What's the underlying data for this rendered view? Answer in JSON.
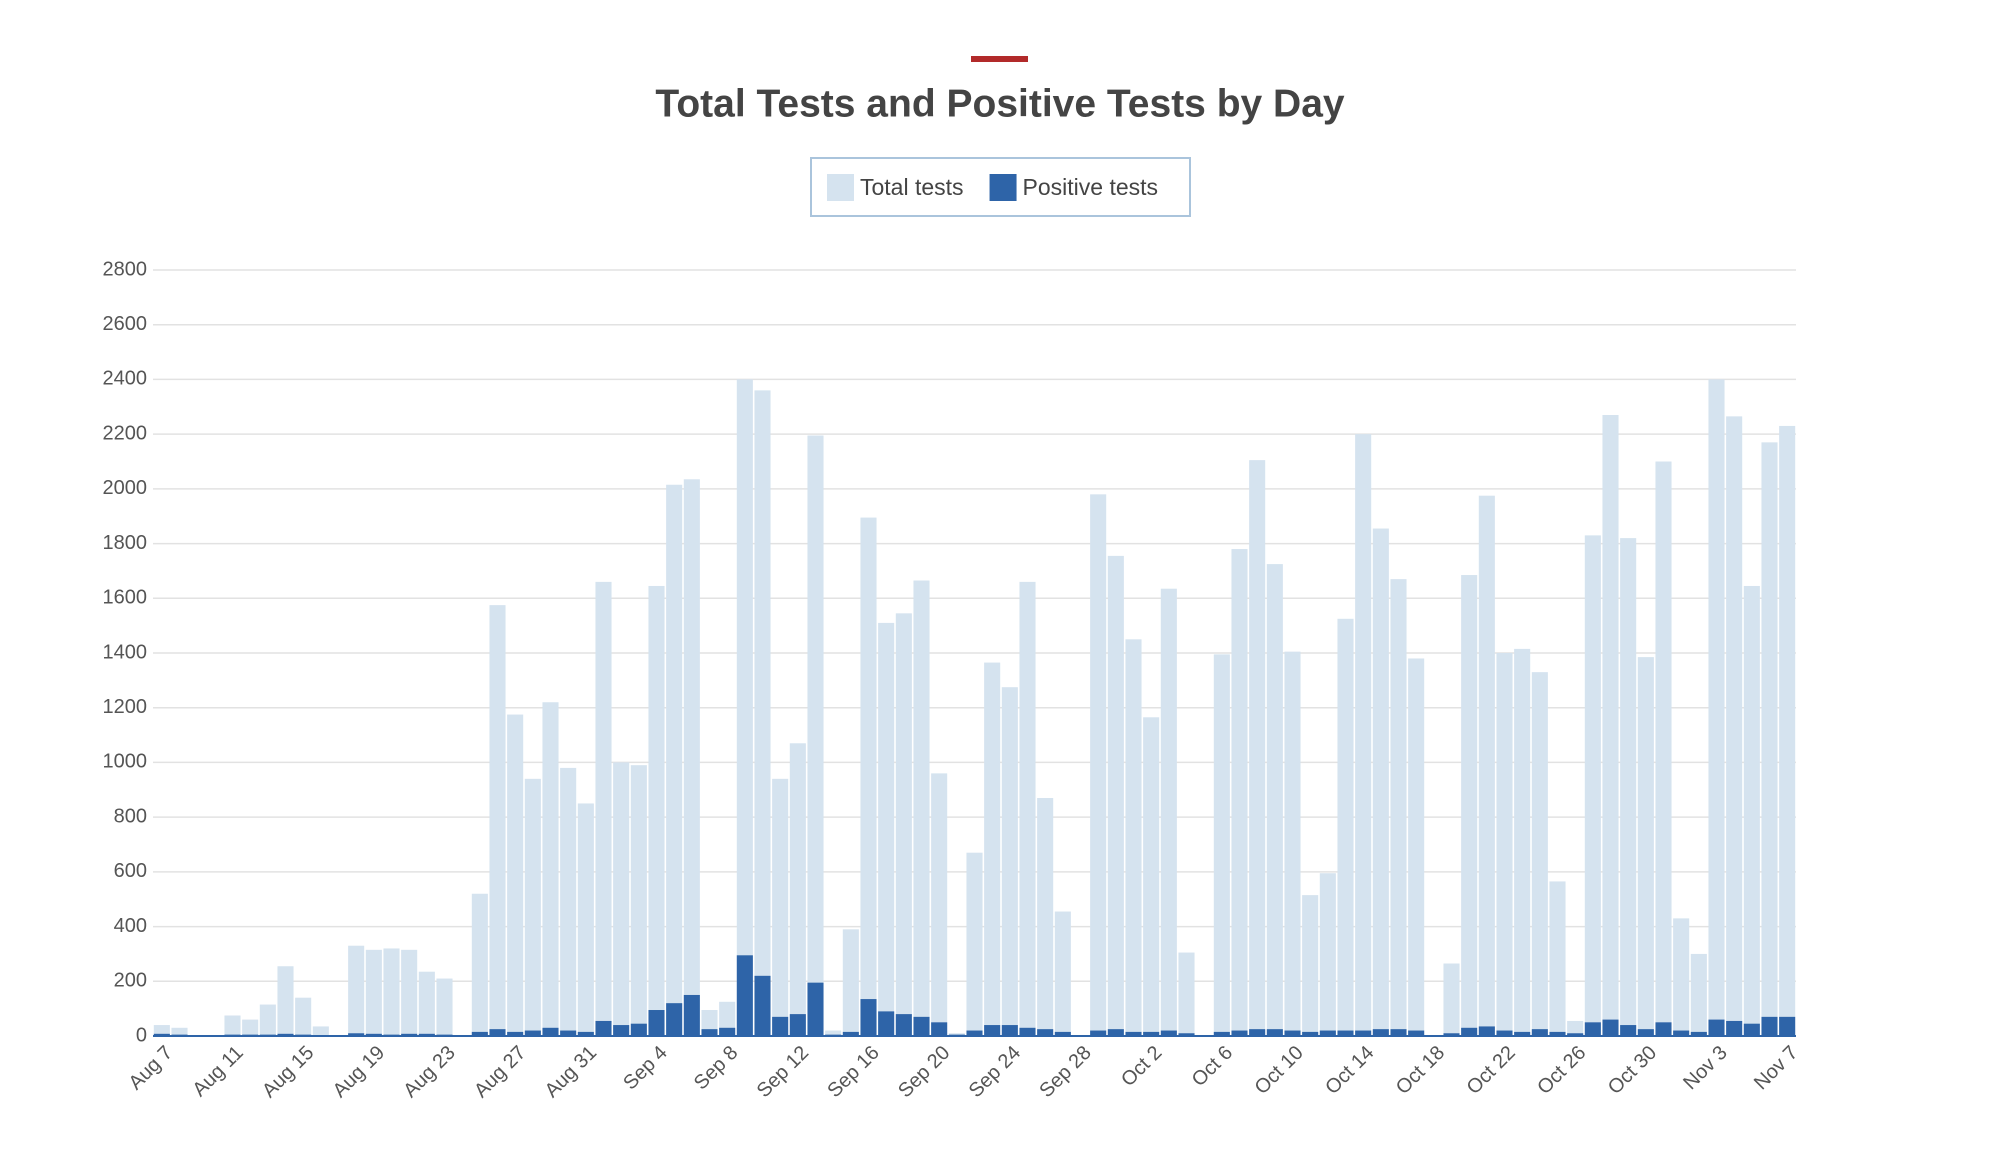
{
  "chart_data": {
    "type": "bar",
    "title": "Total Tests and Positive Tests by Day",
    "categories": [
      "Aug 7",
      null,
      null,
      null,
      "Aug 11",
      null,
      null,
      null,
      "Aug 15",
      null,
      null,
      null,
      "Aug 19",
      null,
      null,
      null,
      "Aug 23",
      null,
      null,
      null,
      "Aug 27",
      null,
      null,
      null,
      "Aug 31",
      null,
      null,
      null,
      "Sep 4",
      null,
      null,
      null,
      "Sep 8",
      null,
      null,
      null,
      "Sep 12",
      null,
      null,
      null,
      "Sep 16",
      null,
      null,
      null,
      "Sep 20",
      null,
      null,
      null,
      "Sep 24",
      null,
      null,
      null,
      "Sep 28",
      null,
      null,
      null,
      "Oct 2",
      null,
      null,
      null,
      "Oct 6",
      null,
      null,
      null,
      "Oct 10",
      null,
      null,
      null,
      "Oct 14",
      null,
      null,
      null,
      "Oct 18",
      null,
      null,
      null,
      "Oct 22",
      null,
      null,
      null,
      "Oct 26",
      null,
      null,
      null,
      "Oct 30",
      null,
      null,
      null,
      "Nov 3",
      null,
      null,
      null,
      "Nov 7"
    ],
    "series": [
      {
        "name": "Total tests",
        "color": "#d5e3ef",
        "values": [
          40,
          30,
          0,
          0,
          75,
          60,
          115,
          255,
          140,
          35,
          0,
          330,
          315,
          320,
          315,
          235,
          210,
          0,
          520,
          1575,
          1175,
          940,
          1220,
          980,
          850,
          1660,
          1000,
          990,
          1645,
          2015,
          2035,
          95,
          125,
          2400,
          2360,
          940,
          1070,
          2195,
          20,
          390,
          1895,
          1510,
          1545,
          1665,
          960,
          10,
          670,
          1365,
          1275,
          1660,
          870,
          455,
          0,
          1980,
          1755,
          1450,
          1165,
          1635,
          305,
          0,
          1395,
          1780,
          2105,
          1725,
          1405,
          515,
          595,
          1525,
          2200,
          1855,
          1670,
          1380,
          0,
          265,
          1685,
          1975,
          1400,
          1415,
          1330,
          565,
          55,
          1830,
          2270,
          1820,
          1385,
          2100,
          430,
          300,
          2400,
          2265,
          1645,
          2170,
          2230
        ]
      },
      {
        "name": "Positive tests",
        "color": "#2e64a8",
        "values": [
          8,
          5,
          0,
          0,
          5,
          5,
          5,
          8,
          5,
          3,
          0,
          10,
          8,
          5,
          8,
          8,
          5,
          0,
          15,
          25,
          15,
          20,
          30,
          20,
          15,
          55,
          40,
          45,
          95,
          120,
          150,
          25,
          30,
          295,
          220,
          70,
          80,
          195,
          5,
          15,
          135,
          90,
          80,
          70,
          50,
          5,
          20,
          40,
          40,
          30,
          25,
          15,
          0,
          20,
          25,
          15,
          15,
          20,
          10,
          0,
          15,
          20,
          25,
          25,
          20,
          15,
          20,
          20,
          20,
          25,
          25,
          20,
          0,
          10,
          30,
          35,
          20,
          15,
          25,
          15,
          10,
          50,
          60,
          40,
          25,
          50,
          20,
          15,
          60,
          55,
          45,
          70,
          70
        ]
      }
    ],
    "ylim": [
      0,
      2800
    ],
    "yticks": [
      0,
      200,
      400,
      600,
      800,
      1000,
      1200,
      1400,
      1600,
      1800,
      2000,
      2200,
      2400,
      2600,
      2800
    ],
    "grid": true
  }
}
